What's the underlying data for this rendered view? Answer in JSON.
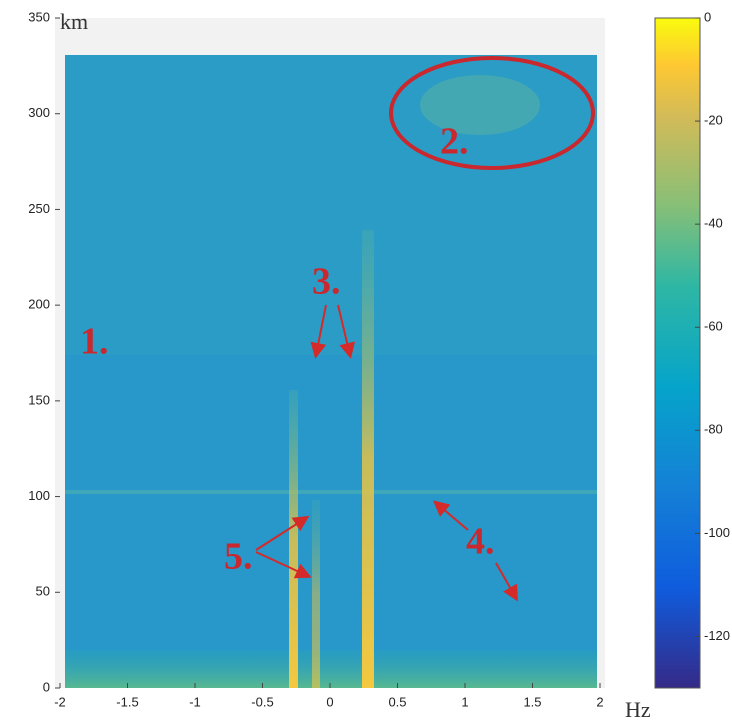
{
  "chart_data": {
    "type": "heatmap",
    "xlabel": "Hz",
    "ylabel": "km",
    "xlim": [
      -2,
      2
    ],
    "xticks": [
      -2,
      -1.5,
      -1,
      -0.5,
      0,
      0.5,
      1,
      1.5,
      2
    ],
    "ylim": [
      0,
      350
    ],
    "yticks": [
      0,
      50,
      100,
      150,
      200,
      250,
      300,
      350
    ],
    "clim": [
      -130,
      0
    ],
    "cticks": [
      0,
      -20,
      -40,
      -60,
      -80,
      -100,
      -120
    ],
    "annotations": [
      "1.",
      "2.",
      "3.",
      "4.",
      "5."
    ]
  }
}
